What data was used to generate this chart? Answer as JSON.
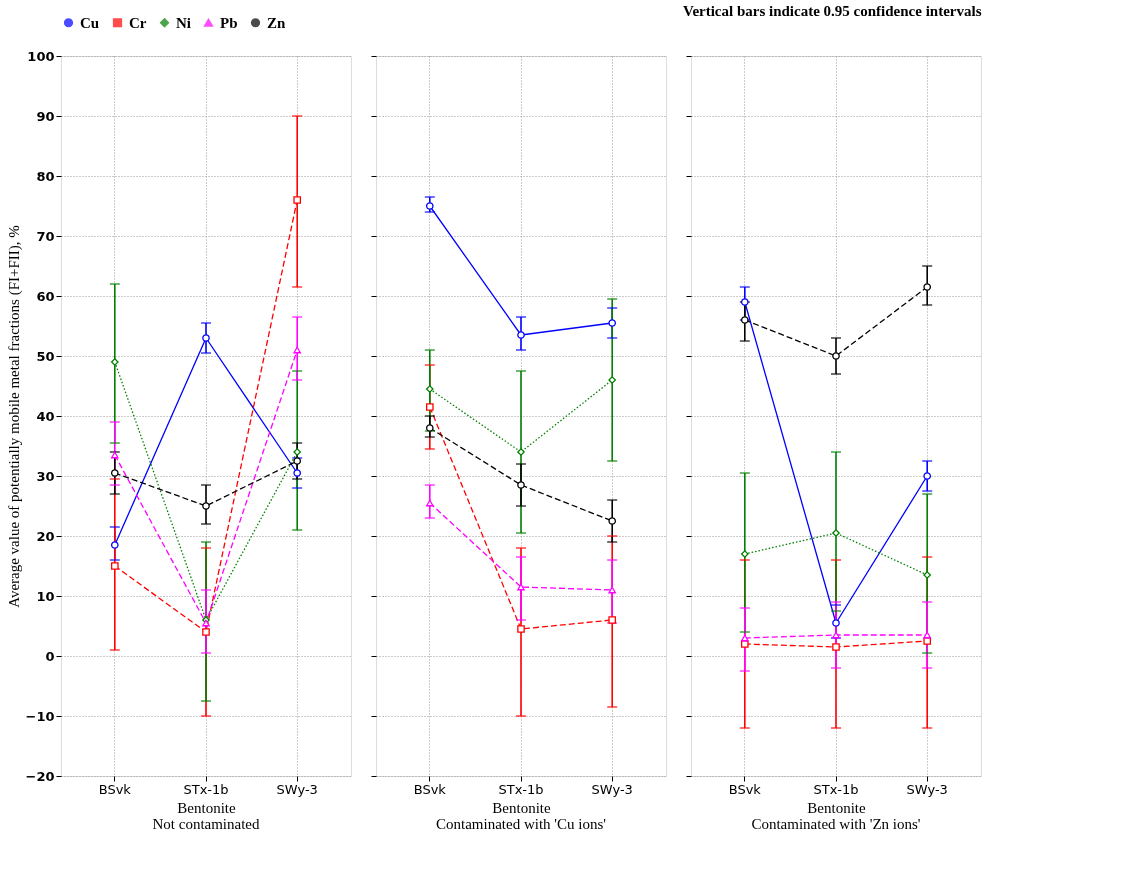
{
  "chart_data": [
    {
      "type": "line",
      "title": "Not contaminated",
      "xlabel": "Bentonite",
      "ylabel": "Average value of potentially mobile metal fractions (FI+FII), %",
      "categories": [
        "BSvk",
        "STx-1b",
        "SWy-3"
      ],
      "ylim": [
        -20,
        100
      ],
      "yticks": [
        -20,
        -10,
        0,
        10,
        20,
        30,
        40,
        50,
        60,
        70,
        80,
        90,
        100
      ],
      "grid": true,
      "legend": "top",
      "annotations": [
        "Vertical bars indicate 0.95 confidence intervals"
      ],
      "series": [
        {
          "name": "Cu",
          "color": "#0000ff",
          "marker": "circle",
          "line_style": "solid",
          "values": [
            18.5,
            53,
            30.5
          ],
          "errors": [
            [
              16,
              21.5
            ],
            [
              50.5,
              55.5
            ],
            [
              28,
              33
            ]
          ]
        },
        {
          "name": "Cr",
          "color": "#ff0000",
          "marker": "square",
          "line_style": "dashed",
          "values": [
            15,
            4,
            76
          ],
          "errors": [
            [
              1,
              29.5
            ],
            [
              -10,
              18
            ],
            [
              61.5,
              90
            ]
          ]
        },
        {
          "name": "Ni",
          "color": "#008000",
          "marker": "diamond",
          "line_style": "dotted",
          "values": [
            49,
            6,
            34
          ],
          "errors": [
            [
              35.5,
              62
            ],
            [
              -7.5,
              19
            ],
            [
              21,
              47.5
            ]
          ]
        },
        {
          "name": "Pb",
          "color": "#ff00ff",
          "marker": "triangle",
          "line_style": "dashed",
          "values": [
            33.5,
            5.5,
            51
          ],
          "errors": [
            [
              28.5,
              39
            ],
            [
              0.5,
              11
            ],
            [
              46,
              56.5
            ]
          ]
        },
        {
          "name": "Zn",
          "color": "#000000",
          "marker": "circle",
          "line_style": "dashed",
          "values": [
            30.5,
            25,
            32.5
          ],
          "errors": [
            [
              27,
              34
            ],
            [
              22,
              28.5
            ],
            [
              29.5,
              35.5
            ]
          ]
        }
      ]
    },
    {
      "type": "line",
      "title": "Contaminated with 'Cu ions'",
      "xlabel": "Bentonite",
      "categories": [
        "BSvk",
        "STx-1b",
        "SWy-3"
      ],
      "ylim": [
        -20,
        100
      ],
      "yticks": [
        -20,
        -10,
        0,
        10,
        20,
        30,
        40,
        50,
        60,
        70,
        80,
        90,
        100
      ],
      "grid": true,
      "tick_labels": "x",
      "series": [
        {
          "name": "Cu",
          "color": "#0000ff",
          "marker": "circle",
          "line_style": "solid",
          "values": [
            75,
            53.5,
            55.5
          ],
          "errors": [
            [
              74,
              76.5
            ],
            [
              51,
              56.5
            ],
            [
              53,
              58
            ]
          ]
        },
        {
          "name": "Cr",
          "color": "#ff0000",
          "marker": "square",
          "line_style": "dashed",
          "values": [
            41.5,
            4.5,
            6
          ],
          "errors": [
            [
              34.5,
              48.5
            ],
            [
              -10,
              18
            ],
            [
              -8.5,
              20
            ]
          ]
        },
        {
          "name": "Ni",
          "color": "#008000",
          "marker": "diamond",
          "line_style": "dotted",
          "values": [
            44.5,
            34,
            46
          ],
          "errors": [
            [
              37.5,
              51
            ],
            [
              20.5,
              47.5
            ],
            [
              32.5,
              59.5
            ]
          ]
        },
        {
          "name": "Pb",
          "color": "#ff00ff",
          "marker": "triangle",
          "line_style": "dashed",
          "values": [
            25.5,
            11.5,
            11
          ],
          "errors": [
            [
              23,
              28.5
            ],
            [
              6,
              16.5
            ],
            [
              5.5,
              16
            ]
          ]
        },
        {
          "name": "Zn",
          "color": "#000000",
          "marker": "circle",
          "line_style": "dashed",
          "values": [
            38,
            28.5,
            22.5
          ],
          "errors": [
            [
              36.5,
              40
            ],
            [
              25,
              32
            ],
            [
              19,
              26
            ]
          ]
        }
      ]
    },
    {
      "type": "line",
      "title": "Contaminated with 'Zn ions'",
      "xlabel": "Bentonite",
      "categories": [
        "BSvk",
        "STx-1b",
        "SWy-3"
      ],
      "ylim": [
        -20,
        100
      ],
      "yticks": [
        -20,
        -10,
        0,
        10,
        20,
        30,
        40,
        50,
        60,
        70,
        80,
        90,
        100
      ],
      "grid": true,
      "tick_labels": "x",
      "series": [
        {
          "name": "Cu",
          "color": "#0000ff",
          "marker": "circle",
          "line_style": "solid",
          "values": [
            59,
            5.5,
            30
          ],
          "errors": [
            [
              56,
              61.5
            ],
            [
              3,
              8.5
            ],
            [
              27.5,
              32.5
            ]
          ]
        },
        {
          "name": "Cr",
          "color": "#ff0000",
          "marker": "square",
          "line_style": "dashed",
          "values": [
            2,
            1.5,
            2.5
          ],
          "errors": [
            [
              -12,
              16
            ],
            [
              -12,
              16
            ],
            [
              -12,
              16.5
            ]
          ]
        },
        {
          "name": "Ni",
          "color": "#008000",
          "marker": "diamond",
          "line_style": "dotted",
          "values": [
            17,
            20.5,
            13.5
          ],
          "errors": [
            [
              4,
              30.5
            ],
            [
              7.5,
              34
            ],
            [
              0.5,
              27
            ]
          ]
        },
        {
          "name": "Pb",
          "color": "#ff00ff",
          "marker": "triangle",
          "line_style": "dashed",
          "values": [
            3,
            3.5,
            3.5
          ],
          "errors": [
            [
              -2.5,
              8
            ],
            [
              -2,
              9
            ],
            [
              -2,
              9
            ]
          ]
        },
        {
          "name": "Zn",
          "color": "#000000",
          "marker": "circle",
          "line_style": "dashed",
          "values": [
            56,
            50,
            61.5
          ],
          "errors": [
            [
              52.5,
              59
            ],
            [
              47,
              53
            ],
            [
              58.5,
              65
            ]
          ]
        }
      ]
    }
  ]
}
